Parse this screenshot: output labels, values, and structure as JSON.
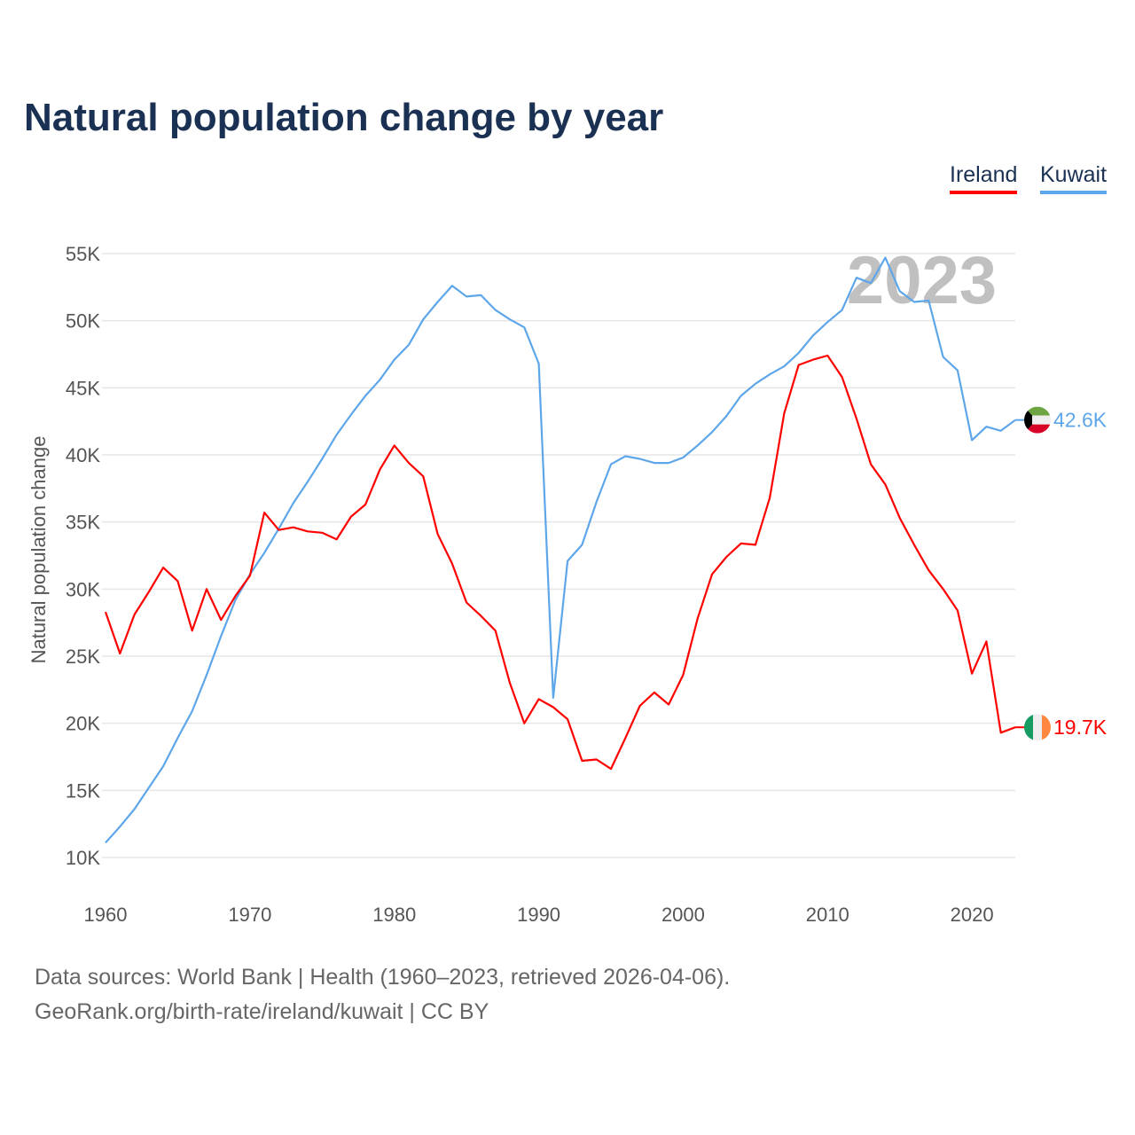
{
  "chart_data": {
    "type": "line",
    "title": "Natural population change by year",
    "xlabel": "",
    "ylabel": "Natural population change",
    "xlim": [
      1960,
      2023
    ],
    "ylim": [
      10000,
      55000
    ],
    "grid": true,
    "legend_position": "top-right",
    "x_ticks": [
      "1960",
      "1970",
      "1980",
      "1990",
      "2000",
      "2010",
      "2020"
    ],
    "x_tick_values": [
      1960,
      1970,
      1980,
      1990,
      2000,
      2010,
      2020
    ],
    "y_ticks": [
      "10K",
      "15K",
      "20K",
      "25K",
      "30K",
      "35K",
      "40K",
      "45K",
      "50K",
      "55K"
    ],
    "y_tick_values": [
      10000,
      15000,
      20000,
      25000,
      30000,
      35000,
      40000,
      45000,
      50000,
      55000
    ],
    "year_label": "2023",
    "x": [
      1960,
      1961,
      1962,
      1963,
      1964,
      1965,
      1966,
      1967,
      1968,
      1969,
      1970,
      1971,
      1972,
      1973,
      1974,
      1975,
      1976,
      1977,
      1978,
      1979,
      1980,
      1981,
      1982,
      1983,
      1984,
      1985,
      1986,
      1987,
      1988,
      1989,
      1990,
      1991,
      1992,
      1993,
      1994,
      1995,
      1996,
      1997,
      1998,
      1999,
      2000,
      2001,
      2002,
      2003,
      2004,
      2005,
      2006,
      2007,
      2008,
      2009,
      2010,
      2011,
      2012,
      2013,
      2014,
      2015,
      2016,
      2017,
      2018,
      2019,
      2020,
      2021,
      2022,
      2023
    ],
    "series": [
      {
        "name": "Ireland",
        "color": "#ff0000",
        "end_label": "19.7K",
        "flag": "ireland-flag",
        "values": [
          28300,
          25200,
          28100,
          29800,
          31600,
          30600,
          26900,
          30000,
          27700,
          29500,
          31000,
          35700,
          34400,
          34600,
          34300,
          34200,
          33700,
          35400,
          36300,
          38900,
          40700,
          39400,
          38400,
          34100,
          31900,
          29000,
          28000,
          26900,
          23000,
          20000,
          21800,
          21200,
          20300,
          17200,
          17300,
          16600,
          18900,
          21300,
          22300,
          21400,
          23600,
          27800,
          31100,
          32400,
          33400,
          33300,
          36800,
          43100,
          46700,
          47100,
          47400,
          45800,
          42700,
          39300,
          37800,
          35300,
          33300,
          31400,
          30000,
          28400,
          23700,
          26100,
          19300,
          19700
        ]
      },
      {
        "name": "Kuwait",
        "color": "#5ea6ea",
        "end_label": "42.6K",
        "flag": "kuwait-flag",
        "values": [
          11100,
          12300,
          13600,
          15200,
          16800,
          18900,
          20900,
          23600,
          26500,
          29200,
          31100,
          32700,
          34500,
          36400,
          38000,
          39700,
          41500,
          43000,
          44400,
          45600,
          47100,
          48200,
          50100,
          51400,
          52600,
          51800,
          51900,
          50800,
          50100,
          49500,
          46800,
          21900,
          32100,
          33300,
          36500,
          39300,
          39900,
          39700,
          39400,
          39400,
          39800,
          40700,
          41700,
          42900,
          44400,
          45300,
          46000,
          46600,
          47600,
          48900,
          49900,
          50800,
          53200,
          52800,
          54700,
          52200,
          51400,
          51500,
          47300,
          46300,
          41100,
          42100,
          41800,
          42600
        ]
      }
    ]
  },
  "legend": {
    "ireland": "Ireland",
    "kuwait": "Kuwait"
  },
  "footer": {
    "line1": "Data sources: World Bank | Health (1960–2023, retrieved 2026-04-06).",
    "line2": "GeoRank.org/birth-rate/ireland/kuwait | CC BY"
  }
}
